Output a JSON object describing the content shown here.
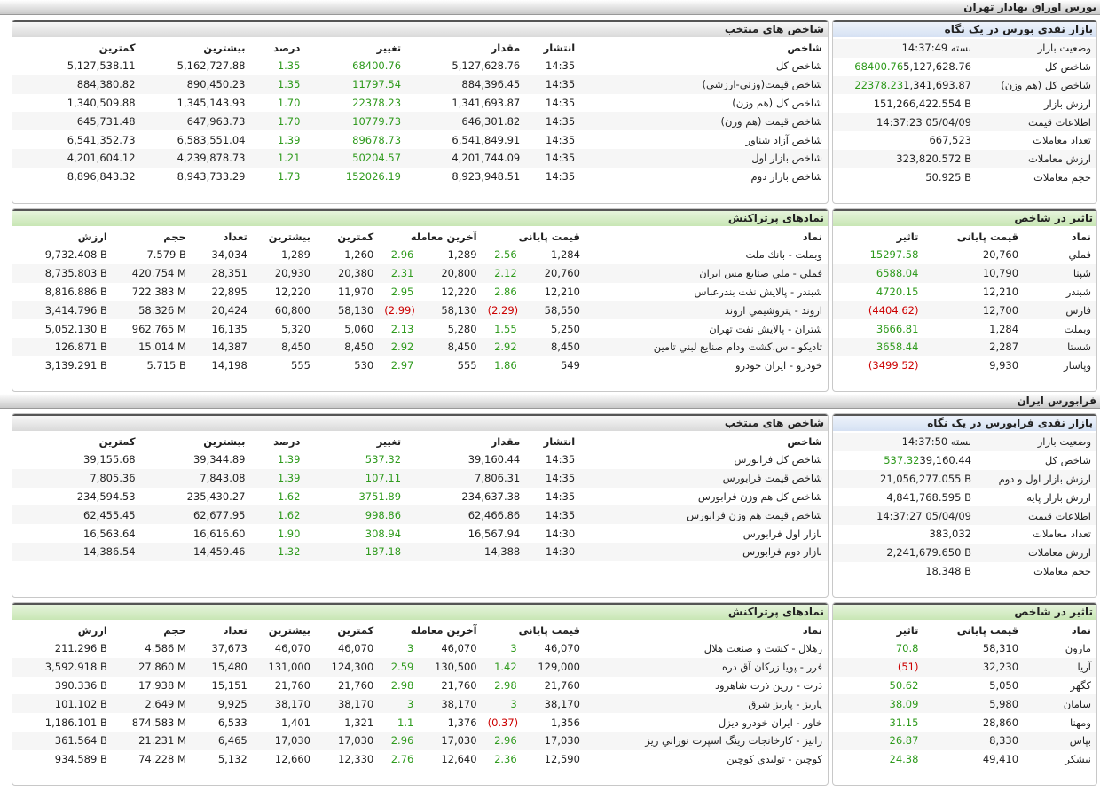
{
  "sections": [
    {
      "title": "بورس اوراق بهادار تهران",
      "glance": {
        "title": "بازار نقدی بورس در یک نگاه",
        "rows": [
          [
            "وضعیت بازار",
            "بسته 14:37:49"
          ],
          [
            "شاخص کل",
            "5,127,628.76",
            "68400.76"
          ],
          [
            "شاخص کل (هم وزن)",
            "1,341,693.87",
            "22378.23"
          ],
          [
            "ارزش بازار",
            "151,266,422.554 B"
          ],
          [
            "اطلاعات قیمت",
            "14:37:23 05/04/09"
          ],
          [
            "تعداد معاملات",
            "667,523"
          ],
          [
            "ارزش معاملات",
            "323,820.572 B"
          ],
          [
            "حجم معاملات",
            "50.925 B"
          ]
        ]
      },
      "indices": {
        "title": "شاخص های منتخب",
        "columns": [
          "شاخص",
          "انتشار",
          "مقدار",
          "تغییر",
          "درصد",
          "بیشترین",
          "کمترین"
        ],
        "rows": [
          [
            "شاخص کل",
            "14:35",
            "5,127,628.76",
            "68400.76",
            "1.35",
            "5,162,727.88",
            "5,127,538.11"
          ],
          [
            "شاخص قیمت(وزني-ارزشي)",
            "14:35",
            "884,396.45",
            "11797.54",
            "1.35",
            "890,450.23",
            "884,380.82"
          ],
          [
            "شاخص کل (هم وزن)",
            "14:35",
            "1,341,693.87",
            "22378.23",
            "1.70",
            "1,345,143.93",
            "1,340,509.88"
          ],
          [
            "شاخص قیمت (هم وزن)",
            "14:35",
            "646,301.82",
            "10779.73",
            "1.70",
            "647,963.73",
            "645,731.48"
          ],
          [
            "شاخص آزاد شناور",
            "14:35",
            "6,541,849.91",
            "89678.73",
            "1.39",
            "6,583,551.04",
            "6,541,352.73"
          ],
          [
            "شاخص بازار اول",
            "14:35",
            "4,201,744.09",
            "50204.57",
            "1.21",
            "4,239,878.73",
            "4,201,604.12"
          ],
          [
            "شاخص بازار دوم",
            "14:35",
            "8,923,948.51",
            "152026.19",
            "1.73",
            "8,943,733.29",
            "8,896,843.32"
          ]
        ]
      },
      "active": {
        "title": "نمادهای پرتراکنش",
        "columns": [
          "نماد",
          "قیمت پایانی",
          "آخرین معامله",
          "کمترین",
          "بیشترین",
          "تعداد",
          "حجم",
          "ارزش"
        ],
        "rows": [
          [
            "وبملت - بانك ملت",
            "1,284",
            "2.56",
            "1,289",
            "2.96",
            "1,260",
            "1,289",
            "34,034",
            "7.579 B",
            "9,732.408 B"
          ],
          [
            "فملي - ملي صنايع مس ايران",
            "20,760",
            "2.12",
            "20,800",
            "2.31",
            "20,380",
            "20,930",
            "28,351",
            "420.754 M",
            "8,735.803 B"
          ],
          [
            "شبندر - پالايش نفت بندرعباس",
            "12,210",
            "2.86",
            "12,220",
            "2.95",
            "11,970",
            "12,220",
            "22,895",
            "722.383 M",
            "8,816.886 B"
          ],
          [
            "اروند - پتروشيمي اروند",
            "58,550",
            "(2.29)",
            "58,130",
            "(2.99)",
            "58,130",
            "60,800",
            "20,424",
            "58.326 M",
            "3,414.796 B"
          ],
          [
            "شتران - پالايش نفت تهران",
            "5,250",
            "1.55",
            "5,280",
            "2.13",
            "5,060",
            "5,320",
            "16,135",
            "962.765 M",
            "5,052.130 B"
          ],
          [
            "تاديكو - س.كشت ودام صنايع لبني تامين",
            "8,450",
            "2.92",
            "8,450",
            "2.92",
            "8,450",
            "8,450",
            "14,387",
            "15.014 M",
            "126.871 B"
          ],
          [
            "خودرو - ايران خودرو",
            "549",
            "1.86",
            "555",
            "2.97",
            "530",
            "555",
            "14,198",
            "5.715 B",
            "3,139.291 B"
          ]
        ]
      },
      "impact": {
        "title": "تاثیر در شاخص",
        "columns": [
          "نماد",
          "قیمت پایانی",
          "تاثیر"
        ],
        "rows": [
          [
            "فملي",
            "20,760",
            "15297.58"
          ],
          [
            "شپنا",
            "10,790",
            "6588.04"
          ],
          [
            "شبندر",
            "12,210",
            "4720.15"
          ],
          [
            "فارس",
            "12,700",
            "(4404.62)"
          ],
          [
            "وبملت",
            "1,284",
            "3666.81"
          ],
          [
            "شستا",
            "2,287",
            "3658.44"
          ],
          [
            "وپاسار",
            "9,930",
            "(3499.52)"
          ]
        ]
      }
    },
    {
      "title": "فرابورس ایران",
      "glance": {
        "title": "بازار نقدی فرابورس در یک نگاه",
        "rows": [
          [
            "وضعیت بازار",
            "بسته 14:37:50"
          ],
          [
            "شاخص کل",
            "39,160.44",
            "537.32"
          ],
          [
            "ارزش بازار اول و دوم",
            "21,056,277.055 B"
          ],
          [
            "ارزش بازار پایه",
            "4,841,768.595 B"
          ],
          [
            "اطلاعات قیمت",
            "14:37:27 05/04/09"
          ],
          [
            "تعداد معاملات",
            "383,032"
          ],
          [
            "ارزش معاملات",
            "2,241,679.650 B"
          ],
          [
            "حجم معاملات",
            "18.348 B"
          ]
        ]
      },
      "indices": {
        "title": "شاخص های منتخب",
        "columns": [
          "شاخص",
          "انتشار",
          "مقدار",
          "تغییر",
          "درصد",
          "بیشترین",
          "کمترین"
        ],
        "rows": [
          [
            "شاخص کل فرابورس",
            "14:35",
            "39,160.44",
            "537.32",
            "1.39",
            "39,344.89",
            "39,155.68"
          ],
          [
            "شاخص قیمت فرابورس",
            "14:35",
            "7,806.31",
            "107.11",
            "1.39",
            "7,843.08",
            "7,805.36"
          ],
          [
            "شاخص کل هم وزن فرابورس",
            "14:35",
            "234,637.38",
            "3751.89",
            "1.62",
            "235,430.27",
            "234,594.53"
          ],
          [
            "شاخص قیمت هم وزن فرابورس",
            "14:35",
            "62,466.86",
            "998.86",
            "1.62",
            "62,677.95",
            "62,455.45"
          ],
          [
            "بازار اول فرابورس",
            "14:30",
            "16,567.94",
            "308.94",
            "1.90",
            "16,616.60",
            "16,563.64"
          ],
          [
            "بازار دوم فرابورس",
            "14:30",
            "14,388",
            "187.18",
            "1.32",
            "14,459.46",
            "14,386.54"
          ]
        ]
      },
      "active": {
        "title": "نمادهای پرتراکنش",
        "columns": [
          "نماد",
          "قیمت پایانی",
          "آخرین معامله",
          "کمترین",
          "بیشترین",
          "تعداد",
          "حجم",
          "ارزش"
        ],
        "rows": [
          [
            "زهلال - کشت و صنعت هلال",
            "46,070",
            "3",
            "46,070",
            "3",
            "46,070",
            "46,070",
            "37,673",
            "4.586 M",
            "211.296 B"
          ],
          [
            "فرر - پويا زركان آق دره",
            "129,000",
            "1.42",
            "130,500",
            "2.59",
            "124,300",
            "131,000",
            "15,480",
            "27.860 M",
            "3,592.918 B"
          ],
          [
            "ذرت - زرين ذرت شاهرود",
            "21,760",
            "2.98",
            "21,760",
            "2.98",
            "21,760",
            "21,760",
            "15,151",
            "17.938 M",
            "390.336 B"
          ],
          [
            "پاريز - پاريز شرق",
            "38,170",
            "3",
            "38,170",
            "3",
            "38,170",
            "38,170",
            "9,925",
            "2.649 M",
            "101.102 B"
          ],
          [
            "خاور - ايران خودرو ديزل",
            "1,356",
            "(0.37)",
            "1,376",
            "1.1",
            "1,321",
            "1,401",
            "6,533",
            "874.583 M",
            "1,186.101 B"
          ],
          [
            "رانيز - كارخانجات رينگ اسپرت نوراني ريز",
            "17,030",
            "2.96",
            "17,030",
            "2.96",
            "17,030",
            "17,030",
            "6,465",
            "21.231 M",
            "361.564 B"
          ],
          [
            "كوچين - توليدي كوچين",
            "12,590",
            "2.36",
            "12,640",
            "2.76",
            "12,330",
            "12,660",
            "5,132",
            "74.228 M",
            "934.589 B"
          ]
        ]
      },
      "impact": {
        "title": "تاثیر در شاخص",
        "columns": [
          "نماد",
          "قیمت پایانی",
          "تاثیر"
        ],
        "rows": [
          [
            "مارون",
            "58,310",
            "70.8"
          ],
          [
            "آريا",
            "32,230",
            "(51)"
          ],
          [
            "كگهر",
            "5,050",
            "50.62"
          ],
          [
            "سامان",
            "5,980",
            "38.09"
          ],
          [
            "ومهنا",
            "28,860",
            "31.15"
          ],
          [
            "بپاس",
            "8,330",
            "26.87"
          ],
          [
            "نيشكر",
            "49,410",
            "24.38"
          ]
        ]
      }
    }
  ]
}
